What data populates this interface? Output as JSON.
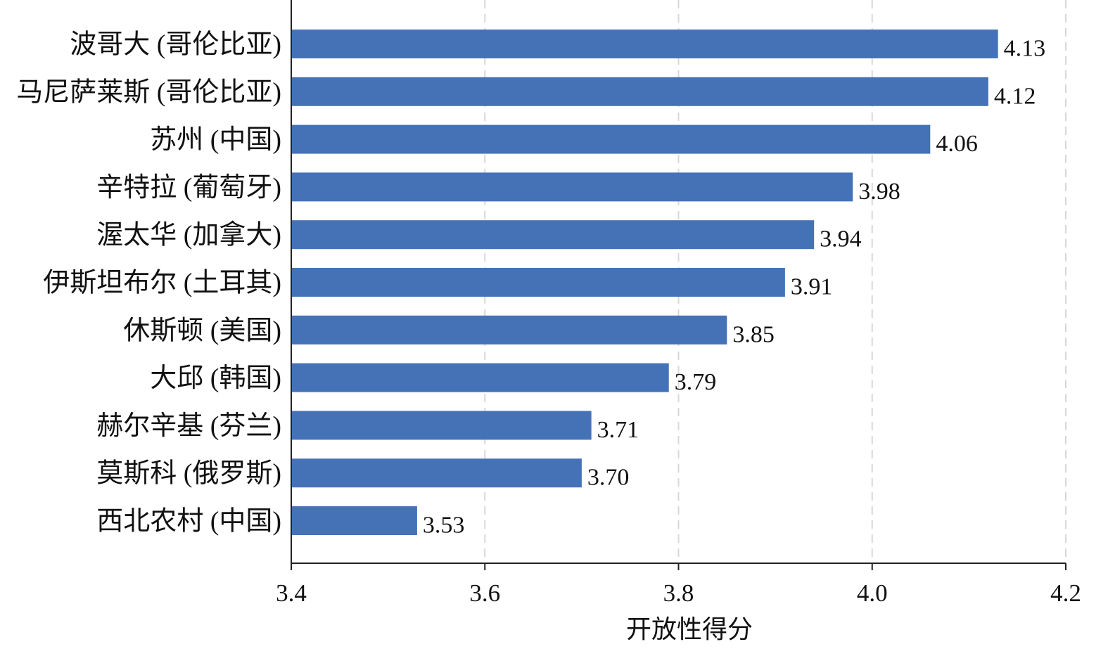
{
  "chart_data": {
    "type": "bar",
    "orientation": "horizontal",
    "categories": [
      "波哥大 (哥伦比亚)",
      "马尼萨莱斯 (哥伦比亚)",
      "苏州 (中国)",
      "辛特拉 (葡萄牙)",
      "渥太华 (加拿大)",
      "伊斯坦布尔 (土耳其)",
      "休斯顿 (美国)",
      "大邱 (韩国)",
      "赫尔辛基 (芬兰)",
      "莫斯科 (俄罗斯)",
      "西北农村 (中国)"
    ],
    "values": [
      4.13,
      4.12,
      4.06,
      3.98,
      3.94,
      3.91,
      3.85,
      3.79,
      3.71,
      3.7,
      3.53
    ],
    "value_labels": [
      "4.13",
      "4.12",
      "4.06",
      "3.98",
      "3.94",
      "3.91",
      "3.85",
      "3.79",
      "3.71",
      "3.70",
      "3.53"
    ],
    "xlabel": "开放性得分",
    "ylabel": "",
    "xlim": [
      3.4,
      4.2
    ],
    "xticks": [
      3.4,
      3.6,
      3.8,
      4.0,
      4.2
    ],
    "xtick_labels": [
      "3.4",
      "3.6",
      "3.8",
      "4.0",
      "4.2"
    ],
    "grid": "x-dashed",
    "bar_color": "#4572b7",
    "legend": "none"
  }
}
